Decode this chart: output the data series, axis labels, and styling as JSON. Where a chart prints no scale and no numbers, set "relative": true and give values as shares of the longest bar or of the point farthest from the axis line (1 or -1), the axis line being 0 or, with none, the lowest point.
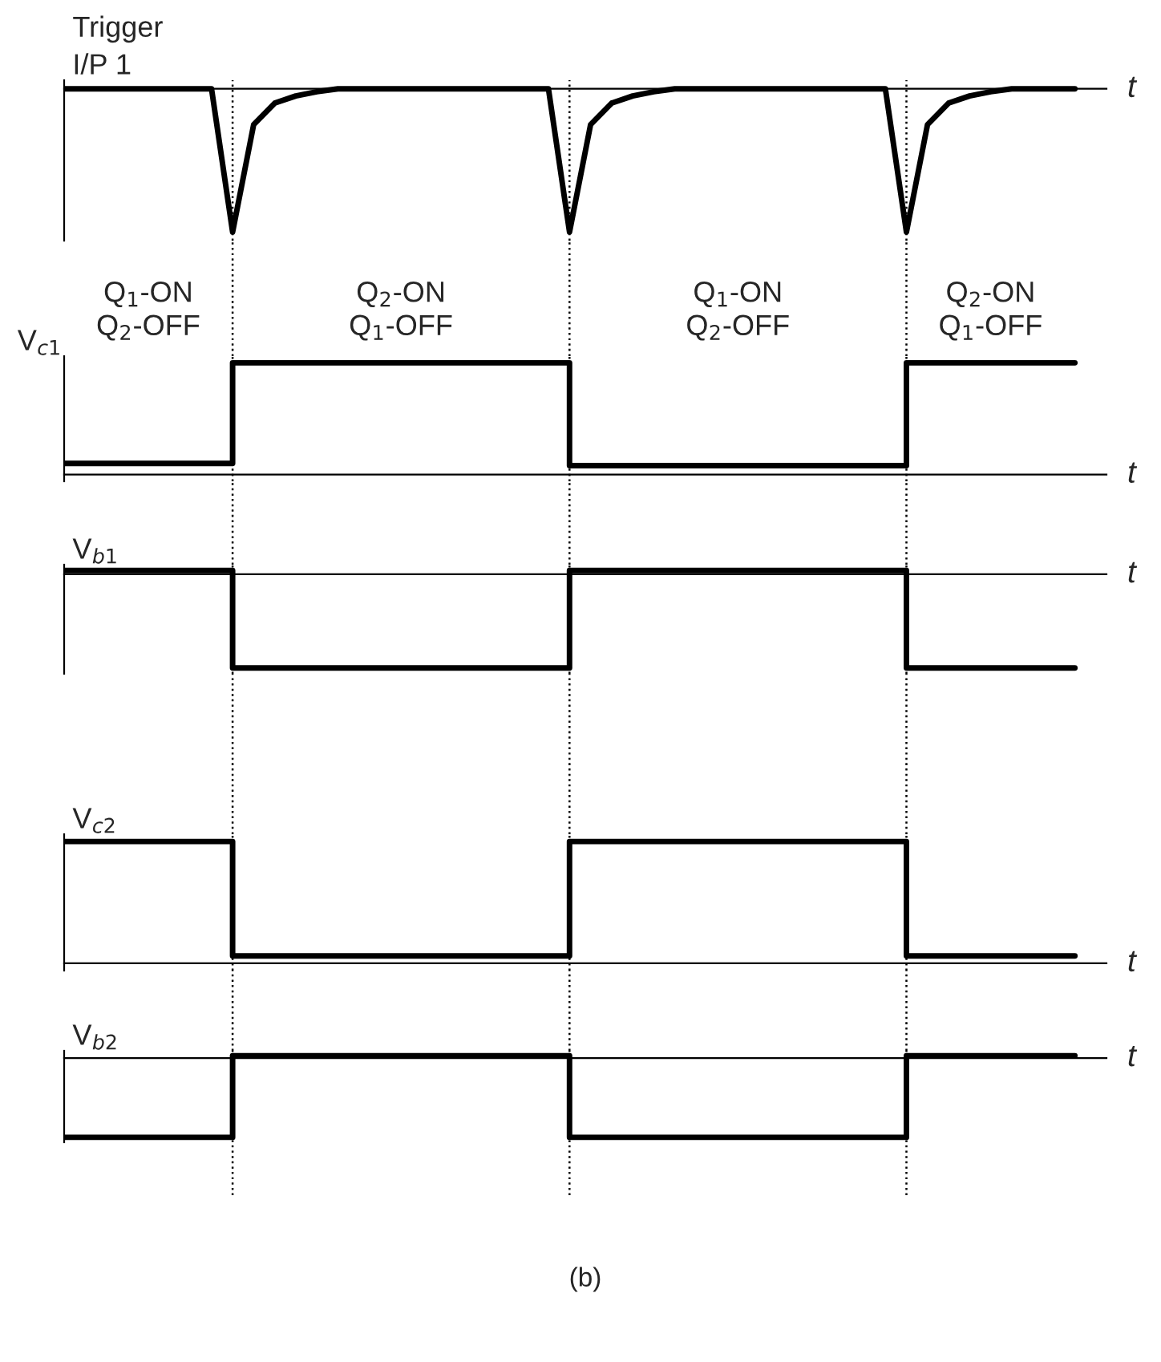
{
  "chart_data": [
    {
      "type": "line",
      "relative": true,
      "ylabel": "Trigger\nI/P 1",
      "xlabel": "t",
      "tick_labels": false,
      "grid": "x",
      "line_style": "solid",
      "categories": [
        null,
        null,
        null,
        null,
        null,
        null,
        null,
        null,
        null,
        null,
        null,
        null,
        null,
        null,
        null,
        null,
        null,
        null,
        null,
        null,
        null,
        null,
        null,
        null,
        null,
        null,
        null,
        null,
        null,
        null,
        null,
        null,
        null,
        null,
        null,
        null,
        null,
        null,
        null,
        null,
        null,
        null,
        null,
        null,
        null,
        null,
        null,
        null,
        null
      ],
      "series": [
        {
          "color": "#000000",
          "values": [
            0,
            0,
            0,
            0,
            0,
            0,
            0,
            0,
            -1,
            -0.25,
            -0.1,
            -0.05,
            -0.02,
            0,
            0,
            0,
            0,
            0,
            0,
            0,
            0,
            0,
            0,
            0,
            -1,
            -0.25,
            -0.1,
            -0.05,
            -0.02,
            0,
            0,
            0,
            0,
            0,
            0,
            0,
            0,
            0,
            0,
            0,
            -1,
            -0.25,
            -0.1,
            -0.05,
            -0.02,
            0,
            0,
            0,
            0
          ]
        }
      ]
    },
    {
      "type": "step",
      "relative": true,
      "ylabel": "V$_{c1}$",
      "xlabel": "t",
      "tick_labels": false,
      "grid": "x",
      "line_style": "solid",
      "annotations": [
        "Q$_{1}$-ON\nQ$_{2}$-OFF",
        "Q$_{2}$-ON\nQ$_{1}$-OFF",
        "Q$_{1}$-ON\nQ$_{2}$-OFF",
        "Q$_{2}$-ON\nQ$_{1}$-OFF"
      ],
      "categories": [
        null,
        null,
        null,
        null,
        null,
        null,
        null,
        null,
        null,
        null,
        null,
        null,
        null,
        null,
        null,
        null,
        null,
        null,
        null,
        null,
        null,
        null,
        null,
        null,
        null,
        null,
        null,
        null,
        null,
        null,
        null,
        null,
        null,
        null,
        null,
        null,
        null,
        null,
        null,
        null,
        null,
        null,
        null,
        null,
        null,
        null,
        null,
        null,
        null
      ],
      "series": [
        {
          "color": "#000000",
          "values": [
            0.1,
            0.1,
            0.1,
            0.1,
            0.1,
            0.1,
            0.1,
            0.1,
            1,
            1,
            1,
            1,
            1,
            1,
            1,
            1,
            1,
            1,
            1,
            1,
            1,
            1,
            1,
            1,
            0.08,
            0.08,
            0.08,
            0.08,
            0.08,
            0.08,
            0.08,
            0.08,
            0.08,
            0.08,
            0.08,
            0.08,
            0.08,
            0.08,
            0.08,
            0.08,
            1,
            1,
            1,
            1,
            1,
            1,
            1,
            1,
            1
          ]
        }
      ]
    },
    {
      "type": "step",
      "relative": true,
      "ylabel": "V$_{b1}$",
      "xlabel": "t",
      "tick_labels": false,
      "grid": "x",
      "line_style": "solid",
      "categories": [
        null,
        null,
        null,
        null,
        null,
        null,
        null,
        null,
        null,
        null,
        null,
        null,
        null,
        null,
        null,
        null,
        null,
        null,
        null,
        null,
        null,
        null,
        null,
        null,
        null,
        null,
        null,
        null,
        null,
        null,
        null,
        null,
        null,
        null,
        null,
        null,
        null,
        null,
        null,
        null,
        null,
        null,
        null,
        null,
        null,
        null,
        null,
        null,
        null
      ],
      "series": [
        {
          "color": "#000000",
          "values": [
            0.04,
            0.04,
            0.04,
            0.04,
            0.04,
            0.04,
            0.04,
            0.04,
            -1,
            -1,
            -1,
            -1,
            -1,
            -1,
            -1,
            -1,
            -1,
            -1,
            -1,
            -1,
            -1,
            -1,
            -1,
            -1,
            0.04,
            0.04,
            0.04,
            0.04,
            0.04,
            0.04,
            0.04,
            0.04,
            0.04,
            0.04,
            0.04,
            0.04,
            0.04,
            0.04,
            0.04,
            0.04,
            -1,
            -1,
            -1,
            -1,
            -1,
            -1,
            -1,
            -1,
            -1
          ]
        }
      ]
    },
    {
      "type": "step",
      "relative": true,
      "ylabel": "V$_{c2}$",
      "xlabel": "t",
      "tick_labels": false,
      "grid": "x",
      "line_style": "solid",
      "categories": [
        null,
        null,
        null,
        null,
        null,
        null,
        null,
        null,
        null,
        null,
        null,
        null,
        null,
        null,
        null,
        null,
        null,
        null,
        null,
        null,
        null,
        null,
        null,
        null,
        null,
        null,
        null,
        null,
        null,
        null,
        null,
        null,
        null,
        null,
        null,
        null,
        null,
        null,
        null,
        null,
        null,
        null,
        null,
        null,
        null,
        null,
        null,
        null,
        null
      ],
      "series": [
        {
          "color": "#000000",
          "values": [
            1,
            1,
            1,
            1,
            1,
            1,
            1,
            1,
            0.06,
            0.06,
            0.06,
            0.06,
            0.06,
            0.06,
            0.06,
            0.06,
            0.06,
            0.06,
            0.06,
            0.06,
            0.06,
            0.06,
            0.06,
            0.06,
            1,
            1,
            1,
            1,
            1,
            1,
            1,
            1,
            1,
            1,
            1,
            1,
            1,
            1,
            1,
            1,
            0.06,
            0.06,
            0.06,
            0.06,
            0.06,
            0.06,
            0.06,
            0.06,
            0.06
          ]
        }
      ]
    },
    {
      "type": "step",
      "relative": true,
      "ylabel": "V$_{b2}$",
      "xlabel": "t",
      "tick_labels": false,
      "grid": "x",
      "line_style": "solid",
      "annotations": [
        "(b)"
      ],
      "categories": [
        null,
        null,
        null,
        null,
        null,
        null,
        null,
        null,
        null,
        null,
        null,
        null,
        null,
        null,
        null,
        null,
        null,
        null,
        null,
        null,
        null,
        null,
        null,
        null,
        null,
        null,
        null,
        null,
        null,
        null,
        null,
        null,
        null,
        null,
        null,
        null,
        null,
        null,
        null,
        null,
        null,
        null,
        null,
        null,
        null,
        null,
        null,
        null,
        null
      ],
      "series": [
        {
          "color": "#000000",
          "values": [
            -1,
            -1,
            -1,
            -1,
            -1,
            -1,
            -1,
            -1,
            0.03,
            0.03,
            0.03,
            0.03,
            0.03,
            0.03,
            0.03,
            0.03,
            0.03,
            0.03,
            0.03,
            0.03,
            0.03,
            0.03,
            0.03,
            0.03,
            -1,
            -1,
            -1,
            -1,
            -1,
            -1,
            -1,
            -1,
            -1,
            -1,
            -1,
            -1,
            -1,
            -1,
            -1,
            -1,
            0.03,
            0.03,
            0.03,
            0.03,
            0.03,
            0.03,
            0.03,
            0.03,
            0.03
          ]
        }
      ]
    }
  ]
}
